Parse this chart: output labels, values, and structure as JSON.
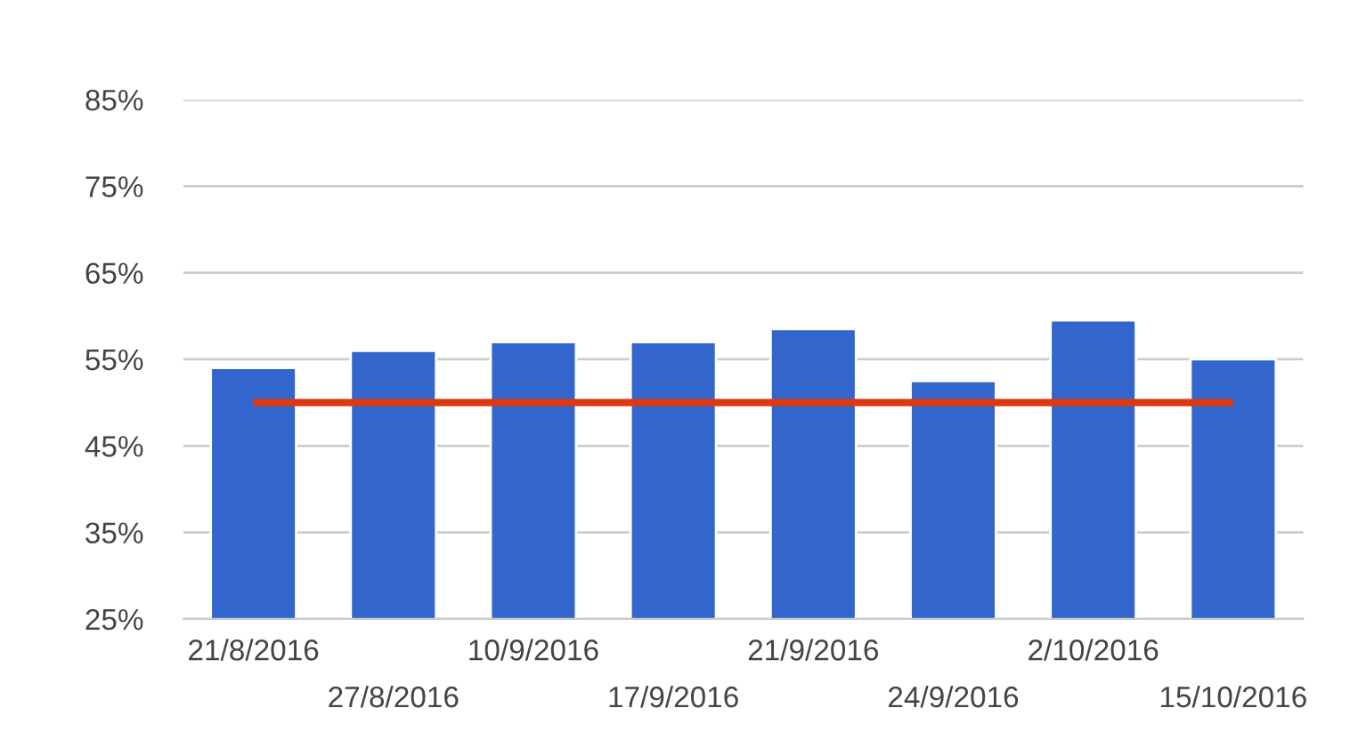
{
  "chart_data": {
    "type": "bar",
    "categories": [
      "21/8/2016",
      "27/8/2016",
      "10/9/2016",
      "17/9/2016",
      "21/9/2016",
      "24/9/2016",
      "2/10/2016",
      "15/10/2016"
    ],
    "series": [
      {
        "color": "#3366cc",
        "values": [
          54,
          56,
          57,
          57,
          58.5,
          52.5,
          59.5,
          55
        ]
      },
      {
        "type": "line",
        "color": "#dc3912",
        "values": [
          50,
          50,
          50,
          50,
          50,
          50,
          50,
          50
        ]
      }
    ],
    "ylim": [
      25,
      85
    ],
    "yticks": [
      {
        "value": 25,
        "label": "25%"
      },
      {
        "value": 35,
        "label": "35%"
      },
      {
        "value": 45,
        "label": "45%"
      },
      {
        "value": 55,
        "label": "55%"
      },
      {
        "value": 65,
        "label": "65%"
      },
      {
        "value": 75,
        "label": "75%"
      },
      {
        "value": 85,
        "label": "85%"
      }
    ],
    "grid": "y"
  }
}
